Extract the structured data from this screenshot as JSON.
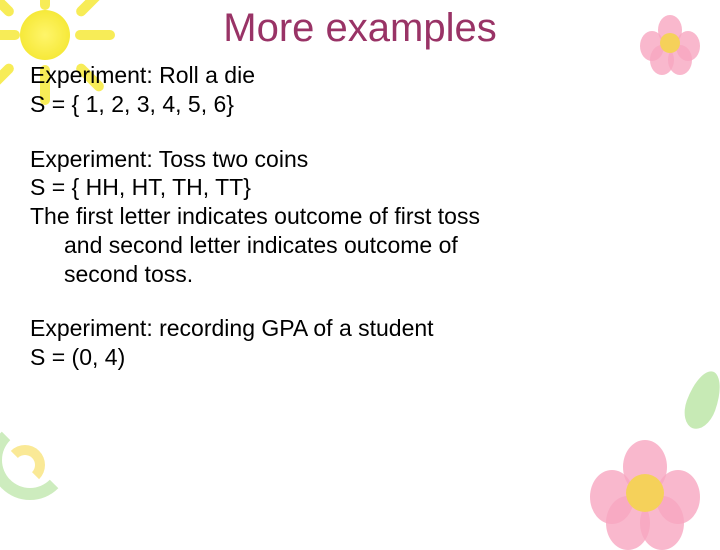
{
  "title": "More examples",
  "colors": {
    "title": "#993366",
    "body": "#000000",
    "background": "#ffffff",
    "sun": "#f6e93a",
    "petal": "#f7a6c1",
    "flower_center": "#f5d15a",
    "leaf": "#b9e5a3"
  },
  "typography": {
    "title_fontsize": 40,
    "body_fontsize": 23,
    "font_family": "Verdana"
  },
  "blocks": [
    {
      "lines": [
        {
          "text": "Experiment: Roll a die",
          "indent": false
        },
        {
          "text": "S = { 1, 2, 3, 4, 5, 6}",
          "indent": false
        }
      ]
    },
    {
      "lines": [
        {
          "text": "Experiment: Toss two coins",
          "indent": false
        },
        {
          "text": "S = { HH, HT, TH, TT}",
          "indent": false
        },
        {
          "text": "The first letter indicates outcome of first toss",
          "indent": false
        },
        {
          "text": "and second letter indicates outcome of",
          "indent": true
        },
        {
          "text": "second toss.",
          "indent": true
        }
      ]
    },
    {
      "lines": [
        {
          "text": "Experiment: recording GPA of a student",
          "indent": false
        },
        {
          "text": "S = (0, 4)",
          "indent": false
        }
      ]
    }
  ]
}
